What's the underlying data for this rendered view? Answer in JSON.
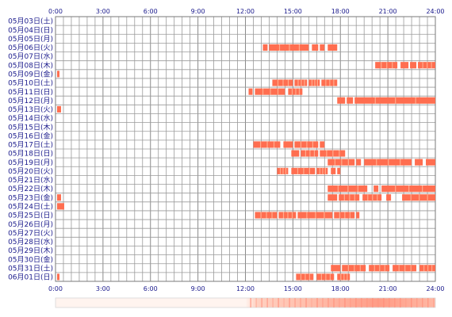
{
  "chart_data": {
    "type": "heatmap",
    "title": "",
    "xlabel": "",
    "ylabel": "",
    "x_ticks": [
      "0:00",
      "3:00",
      "6:00",
      "9:00",
      "12:00",
      "15:00",
      "18:00",
      "21:00",
      "24:00"
    ],
    "xlim": [
      0,
      24
    ],
    "grid": true,
    "rows": [
      {
        "date": "05月03日(土)",
        "segments": []
      },
      {
        "date": "05月04日(日)",
        "segments": []
      },
      {
        "date": "05月05日(月)",
        "segments": []
      },
      {
        "date": "05月06日(火)",
        "segments": [
          [
            13.1,
            13.4
          ],
          [
            13.5,
            16.0
          ],
          [
            16.2,
            16.6
          ],
          [
            16.7,
            17.0
          ],
          [
            17.2,
            17.8
          ]
        ]
      },
      {
        "date": "05月07日(水)",
        "segments": []
      },
      {
        "date": "05月08日(木)",
        "segments": [
          [
            20.2,
            21.6
          ],
          [
            21.8,
            22.3
          ],
          [
            22.4,
            22.8
          ],
          [
            22.9,
            24.0
          ]
        ]
      },
      {
        "date": "05月09日(金)",
        "segments": [
          [
            0.1,
            0.25
          ]
        ]
      },
      {
        "date": "05月10日(土)",
        "segments": [
          [
            13.7,
            15.0
          ],
          [
            15.1,
            15.9
          ],
          [
            16.0,
            16.7
          ],
          [
            16.8,
            17.8
          ]
        ]
      },
      {
        "date": "05月11日(日)",
        "segments": [
          [
            12.2,
            12.45
          ],
          [
            12.6,
            14.5
          ],
          [
            14.7,
            15.6
          ]
        ]
      },
      {
        "date": "05月12日(月)",
        "segments": [
          [
            17.8,
            18.3
          ],
          [
            18.4,
            18.8
          ],
          [
            18.9,
            24.0
          ]
        ]
      },
      {
        "date": "05月13日(火)",
        "segments": [
          [
            0.1,
            0.35
          ]
        ]
      },
      {
        "date": "05月14日(水)",
        "segments": []
      },
      {
        "date": "05月15日(木)",
        "segments": []
      },
      {
        "date": "05月16日(金)",
        "segments": []
      },
      {
        "date": "05月17日(土)",
        "segments": [
          [
            12.5,
            14.2
          ],
          [
            14.4,
            15.0
          ],
          [
            15.1,
            16.6
          ],
          [
            16.7,
            17.0
          ]
        ]
      },
      {
        "date": "05月18日(日)",
        "segments": [
          [
            14.9,
            15.4
          ],
          [
            15.5,
            16.6
          ],
          [
            16.7,
            18.3
          ]
        ]
      },
      {
        "date": "05月19日(月)",
        "segments": [
          [
            17.2,
            18.9
          ],
          [
            19.0,
            19.3
          ],
          [
            19.5,
            22.5
          ],
          [
            22.7,
            23.2
          ],
          [
            23.4,
            24.0
          ]
        ]
      },
      {
        "date": "05月20日(火)",
        "segments": [
          [
            14.0,
            14.7
          ],
          [
            14.9,
            16.4
          ],
          [
            16.5,
            17.2
          ],
          [
            17.4,
            17.7
          ],
          [
            17.8,
            18.0
          ]
        ]
      },
      {
        "date": "05月21日(水)",
        "segments": []
      },
      {
        "date": "05月22日(木)",
        "segments": [
          [
            17.2,
            19.7
          ],
          [
            20.1,
            20.4
          ],
          [
            20.6,
            24.0
          ]
        ]
      },
      {
        "date": "05月23日(金)",
        "segments": [
          [
            0.1,
            0.35
          ],
          [
            17.2,
            17.8
          ],
          [
            17.9,
            19.2
          ],
          [
            19.4,
            20.6
          ],
          [
            20.9,
            21.2
          ],
          [
            21.9,
            24.0
          ]
        ]
      },
      {
        "date": "05月24日(土)",
        "segments": [
          [
            0.1,
            0.55
          ]
        ]
      },
      {
        "date": "05月25日(日)",
        "segments": [
          [
            12.6,
            14.0
          ],
          [
            14.1,
            15.2
          ],
          [
            15.3,
            17.5
          ],
          [
            17.6,
            18.9
          ],
          [
            19.0,
            19.2
          ]
        ]
      },
      {
        "date": "05月26日(月)",
        "segments": []
      },
      {
        "date": "05月27日(火)",
        "segments": []
      },
      {
        "date": "05月28日(水)",
        "segments": []
      },
      {
        "date": "05月29日(木)",
        "segments": []
      },
      {
        "date": "05月30日(金)",
        "segments": []
      },
      {
        "date": "05月31日(土)",
        "segments": [
          [
            17.4,
            18.0
          ],
          [
            18.1,
            19.6
          ],
          [
            19.8,
            21.1
          ],
          [
            21.3,
            22.8
          ],
          [
            23.0,
            24.0
          ]
        ]
      },
      {
        "date": "06月01日(日)",
        "segments": [
          [
            0.1,
            0.25
          ],
          [
            15.2,
            16.3
          ],
          [
            16.5,
            17.6
          ],
          [
            17.8,
            18.6
          ]
        ]
      }
    ],
    "colors": {
      "bar": "#ff6e50",
      "bar_light": "#ffab8c",
      "grid": "#9a9a9a",
      "border": "#7a7a7a",
      "label": "#1a1a8c",
      "summary_low": "#fff4ef",
      "summary_mid": "#ffc6b4",
      "summary_high": "#ff8c78"
    }
  }
}
